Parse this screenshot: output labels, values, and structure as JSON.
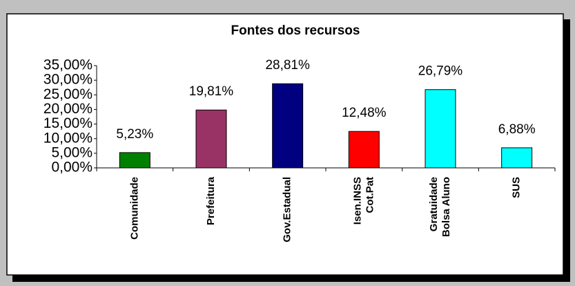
{
  "chart_data": {
    "type": "bar",
    "title": "Fontes dos recursos",
    "categories": [
      "Comunidade",
      "Prefeitura",
      "Gov.Estadual",
      "Isen.INSS\nCot.Pat",
      "Gratuidade\nBolsa Aluno",
      "SUS"
    ],
    "values": [
      5.23,
      19.81,
      28.81,
      12.48,
      26.79,
      6.88
    ],
    "value_labels": [
      "5,23%",
      "19,81%",
      "28,81%",
      "12,48%",
      "26,79%",
      "6,88%"
    ],
    "colors": [
      "#008000",
      "#993366",
      "#000080",
      "#ff0000",
      "#00ffff",
      "#00ffff"
    ],
    "ylim": [
      0,
      35
    ],
    "yticks": [
      {
        "value": 0,
        "label": "0,00%"
      },
      {
        "value": 5,
        "label": "5,00%"
      },
      {
        "value": 10,
        "label": "10,00%"
      },
      {
        "value": 15,
        "label": "15,00%"
      },
      {
        "value": 20,
        "label": "20,00%"
      },
      {
        "value": 25,
        "label": "25,00%"
      },
      {
        "value": 30,
        "label": "30,00%"
      },
      {
        "value": 35,
        "label": "35,00%"
      }
    ],
    "grid": false
  }
}
